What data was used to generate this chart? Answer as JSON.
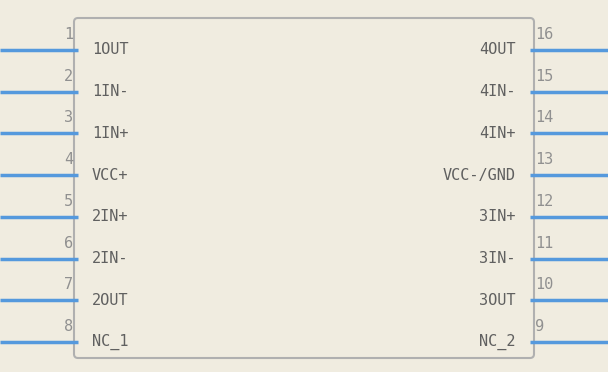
{
  "background_color": "#f0ece0",
  "box_edge_color": "#b0b0b0",
  "box_fill_color": "#f0ece0",
  "pin_line_color": "#5599dd",
  "text_color": "#606060",
  "pin_number_color": "#909090",
  "left_pins": [
    {
      "num": 1,
      "label": "1OUT"
    },
    {
      "num": 2,
      "label": "1IN-"
    },
    {
      "num": 3,
      "label": "1IN+"
    },
    {
      "num": 4,
      "label": "VCC+"
    },
    {
      "num": 5,
      "label": "2IN+"
    },
    {
      "num": 6,
      "label": "2IN-"
    },
    {
      "num": 7,
      "label": "2OUT"
    },
    {
      "num": 8,
      "label": "NC_1"
    }
  ],
  "right_pins": [
    {
      "num": 16,
      "label": "4OUT"
    },
    {
      "num": 15,
      "label": "4IN-"
    },
    {
      "num": 14,
      "label": "4IN+"
    },
    {
      "num": 13,
      "label": "VCC-/GND"
    },
    {
      "num": 12,
      "label": "3IN+"
    },
    {
      "num": 11,
      "label": "3IN-"
    },
    {
      "num": 10,
      "label": "3OUT"
    },
    {
      "num": 9,
      "label": "NC_2"
    }
  ],
  "fig_width": 6.08,
  "fig_height": 3.72,
  "dpi": 100
}
